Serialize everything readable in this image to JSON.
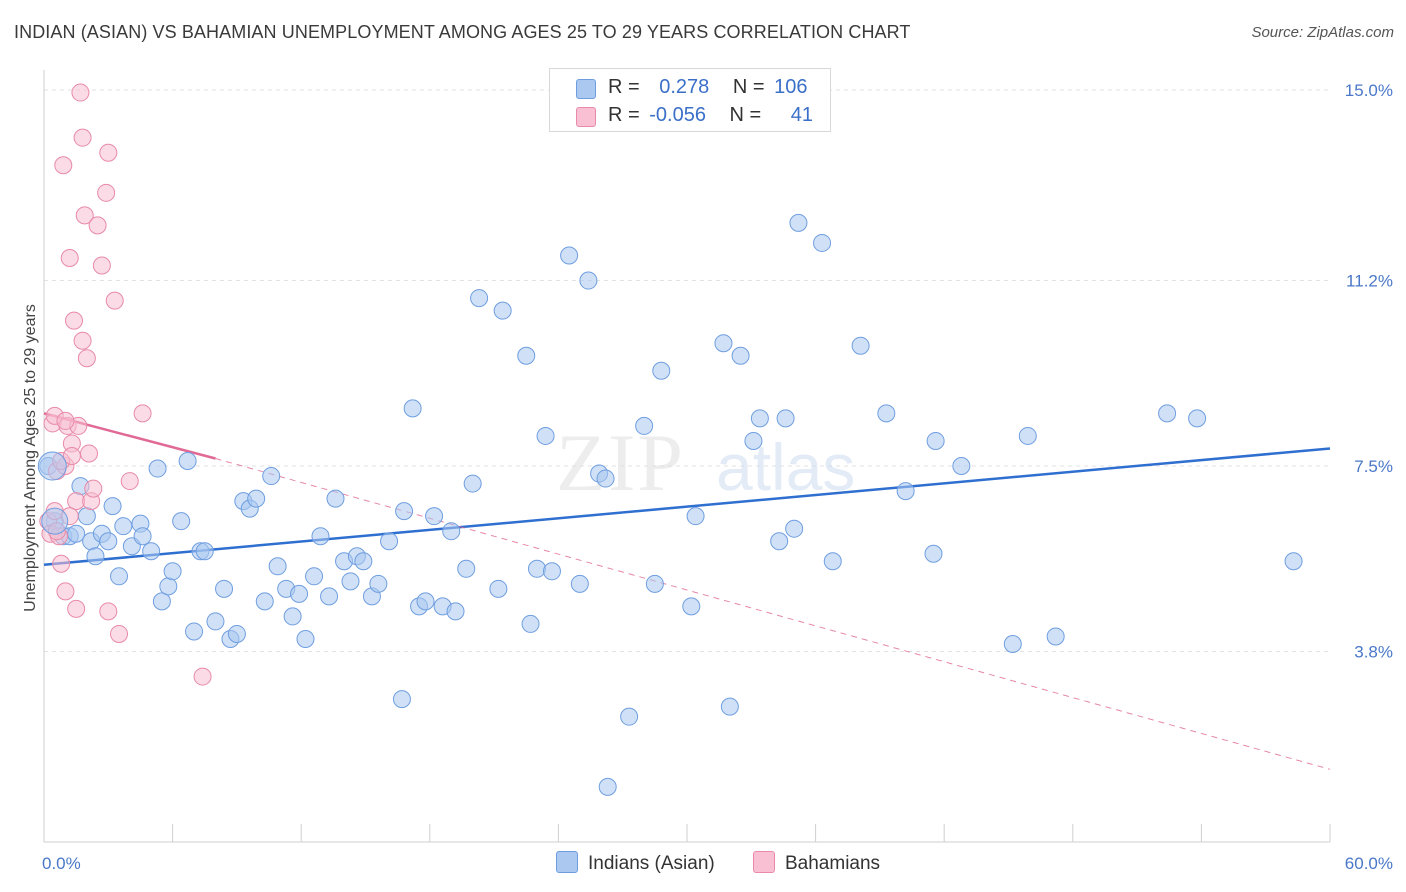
{
  "title": "INDIAN (ASIAN) VS BAHAMIAN UNEMPLOYMENT AMONG AGES 25 TO 29 YEARS CORRELATION CHART",
  "source": "Source: ZipAtlas.com",
  "watermark": {
    "zip": "ZIP",
    "atlas": "atlas"
  },
  "legend": {
    "rows": [
      {
        "r_label": "R =",
        "r_value": "0.278",
        "n_label": "N =",
        "n_value": "106",
        "color": "#aac8f0",
        "border": "#6f9ee0"
      },
      {
        "r_label": "R =",
        "r_value": "-0.056",
        "n_label": "N =",
        "n_value": "41",
        "color": "#f8c0d2",
        "border": "#e88aa8"
      }
    ]
  },
  "bottom_legend": [
    {
      "label": "Indians (Asian)",
      "color": "#aac8f0",
      "border": "#6f9ee0"
    },
    {
      "label": "Bahamians",
      "color": "#f8c0d2",
      "border": "#e88aa8"
    }
  ],
  "chart_data": {
    "type": "scatter",
    "title": "INDIAN (ASIAN) VS BAHAMIAN UNEMPLOYMENT AMONG AGES 25 TO 29 YEARS CORRELATION CHART",
    "xlabel": "",
    "ylabel": "Unemployment Among Ages 25 to 29 years",
    "xlim": [
      0,
      60
    ],
    "ylim": [
      0,
      15.4
    ],
    "x_tick_labels": [
      "0.0%",
      "60.0%"
    ],
    "y_ticks": [
      3.8,
      7.5,
      11.2,
      15.0
    ],
    "y_tick_labels": [
      "3.8%",
      "7.5%",
      "11.2%",
      "15.0%"
    ],
    "grid": true,
    "series": [
      {
        "name": "Indians (Asian)",
        "color": "#aac8f0",
        "edge": "#6f9ee0",
        "trend": {
          "x": [
            0,
            60
          ],
          "y": [
            5.53,
            7.85
          ],
          "color": "#2f6fd0"
        },
        "points": [
          [
            0.2,
            7.5
          ],
          [
            0.5,
            6.4
          ],
          [
            0.9,
            6.1
          ],
          [
            1.2,
            6.1
          ],
          [
            1.5,
            6.15
          ],
          [
            1.7,
            7.1
          ],
          [
            2.0,
            6.5
          ],
          [
            2.2,
            6.0
          ],
          [
            2.4,
            5.7
          ],
          [
            2.7,
            6.15
          ],
          [
            3.0,
            6.0
          ],
          [
            3.2,
            6.7
          ],
          [
            3.5,
            5.3
          ],
          [
            3.7,
            6.3
          ],
          [
            4.1,
            5.9
          ],
          [
            4.5,
            6.35
          ],
          [
            4.6,
            6.1
          ],
          [
            5.0,
            5.8
          ],
          [
            5.3,
            7.45
          ],
          [
            5.5,
            4.8
          ],
          [
            5.8,
            5.1
          ],
          [
            6.0,
            5.4
          ],
          [
            6.4,
            6.4
          ],
          [
            6.7,
            7.6
          ],
          [
            7.0,
            4.2
          ],
          [
            7.3,
            5.8
          ],
          [
            7.5,
            5.8
          ],
          [
            8.0,
            4.4
          ],
          [
            8.4,
            5.05
          ],
          [
            8.7,
            4.05
          ],
          [
            9.0,
            4.15
          ],
          [
            9.3,
            6.8
          ],
          [
            9.6,
            6.65
          ],
          [
            9.9,
            6.85
          ],
          [
            10.3,
            4.8
          ],
          [
            10.6,
            7.3
          ],
          [
            10.9,
            5.5
          ],
          [
            11.3,
            5.05
          ],
          [
            11.6,
            4.5
          ],
          [
            11.9,
            4.95
          ],
          [
            12.2,
            4.05
          ],
          [
            12.6,
            5.3
          ],
          [
            12.9,
            6.1
          ],
          [
            13.3,
            4.9
          ],
          [
            13.6,
            6.85
          ],
          [
            14.0,
            5.6
          ],
          [
            14.3,
            5.2
          ],
          [
            14.6,
            5.7
          ],
          [
            14.9,
            5.6
          ],
          [
            15.3,
            4.9
          ],
          [
            15.6,
            5.15
          ],
          [
            16.1,
            6.0
          ],
          [
            16.7,
            2.85
          ],
          [
            16.8,
            6.6
          ],
          [
            17.2,
            8.65
          ],
          [
            17.5,
            4.7
          ],
          [
            17.8,
            4.8
          ],
          [
            18.2,
            6.5
          ],
          [
            18.6,
            4.7
          ],
          [
            19.0,
            6.2
          ],
          [
            19.2,
            4.6
          ],
          [
            19.7,
            5.45
          ],
          [
            20.0,
            7.15
          ],
          [
            20.3,
            10.85
          ],
          [
            21.2,
            5.05
          ],
          [
            21.4,
            10.6
          ],
          [
            22.5,
            9.7
          ],
          [
            22.7,
            4.35
          ],
          [
            23.0,
            5.45
          ],
          [
            23.4,
            8.1
          ],
          [
            23.7,
            5.4
          ],
          [
            24.5,
            11.7
          ],
          [
            25.0,
            5.15
          ],
          [
            25.4,
            11.2
          ],
          [
            25.9,
            7.35
          ],
          [
            26.2,
            7.25
          ],
          [
            27.3,
            2.5
          ],
          [
            28.0,
            8.3
          ],
          [
            28.5,
            5.15
          ],
          [
            28.8,
            9.4
          ],
          [
            30.2,
            4.7
          ],
          [
            30.4,
            6.5
          ],
          [
            31.7,
            9.95
          ],
          [
            32.0,
            2.7
          ],
          [
            32.5,
            9.7
          ],
          [
            33.1,
            8.0
          ],
          [
            33.4,
            8.45
          ],
          [
            34.3,
            6.0
          ],
          [
            34.6,
            8.45
          ],
          [
            35.0,
            6.25
          ],
          [
            35.2,
            12.35
          ],
          [
            36.3,
            11.95
          ],
          [
            36.8,
            5.6
          ],
          [
            38.1,
            9.9
          ],
          [
            39.3,
            8.55
          ],
          [
            40.2,
            7.0
          ],
          [
            41.5,
            5.75
          ],
          [
            41.6,
            8.0
          ],
          [
            42.8,
            7.5
          ],
          [
            45.2,
            3.95
          ],
          [
            45.9,
            8.1
          ],
          [
            47.2,
            4.1
          ],
          [
            52.4,
            8.55
          ],
          [
            53.8,
            8.45
          ],
          [
            58.3,
            5.6
          ],
          [
            26.3,
            1.1
          ]
        ]
      },
      {
        "name": "Bahamians",
        "color": "#f8c0d2",
        "edge": "#e88aa8",
        "trend": {
          "x": [
            0,
            8
          ],
          "y": [
            8.55,
            7.65
          ],
          "color": "#e06a95",
          "dashed_x": [
            8,
            60
          ],
          "dashed_y": [
            7.65,
            1.45
          ]
        },
        "points": [
          [
            0.2,
            6.4
          ],
          [
            0.3,
            6.15
          ],
          [
            0.4,
            8.35
          ],
          [
            0.5,
            8.5
          ],
          [
            0.6,
            7.4
          ],
          [
            0.7,
            6.1
          ],
          [
            0.8,
            5.55
          ],
          [
            0.9,
            13.5
          ],
          [
            1.0,
            5.0
          ],
          [
            1.0,
            7.5
          ],
          [
            1.1,
            8.3
          ],
          [
            1.2,
            11.65
          ],
          [
            1.3,
            7.95
          ],
          [
            1.4,
            10.4
          ],
          [
            1.5,
            6.8
          ],
          [
            1.5,
            4.65
          ],
          [
            1.6,
            8.3
          ],
          [
            1.7,
            14.95
          ],
          [
            1.8,
            14.05
          ],
          [
            1.8,
            10.0
          ],
          [
            1.9,
            12.5
          ],
          [
            2.0,
            9.65
          ],
          [
            2.1,
            7.75
          ],
          [
            2.2,
            6.8
          ],
          [
            2.3,
            7.05
          ],
          [
            2.5,
            12.3
          ],
          [
            2.7,
            11.5
          ],
          [
            2.9,
            12.95
          ],
          [
            3.0,
            13.75
          ],
          [
            3.0,
            4.6
          ],
          [
            3.3,
            10.8
          ],
          [
            3.5,
            4.15
          ],
          [
            4.6,
            8.55
          ],
          [
            4.0,
            7.2
          ],
          [
            7.4,
            3.3
          ],
          [
            0.5,
            6.6
          ],
          [
            0.6,
            6.2
          ],
          [
            0.8,
            7.6
          ],
          [
            1.2,
            6.5
          ],
          [
            1.3,
            7.7
          ],
          [
            1.0,
            8.4
          ]
        ]
      }
    ]
  }
}
